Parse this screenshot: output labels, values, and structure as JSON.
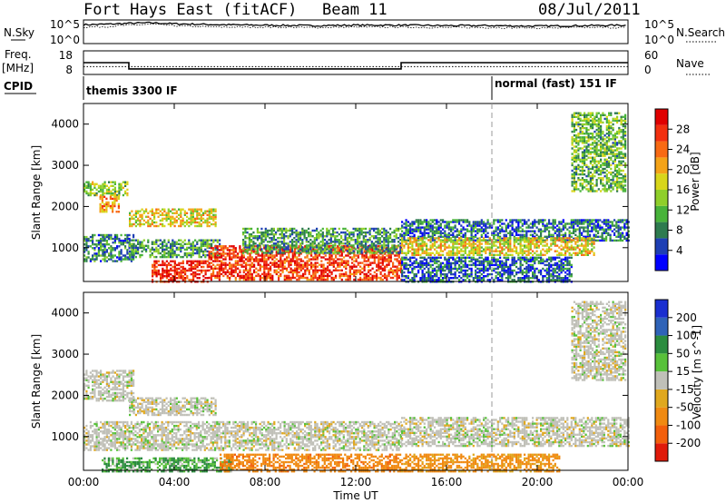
{
  "header": {
    "station": "Fort Hays East (fitACF)",
    "beam": "Beam 11",
    "date": "08/Jul/2011"
  },
  "top_panels": {
    "nsky_label": "N.Sky",
    "nsky_ticks": [
      "10^5",
      "10^0"
    ],
    "nsearch_label": "N.Search",
    "nsearch_ticks": [
      "10^5",
      "10^0"
    ],
    "freq_label": "Freq.",
    "freq_unit": "[MHz]",
    "freq_ticks": [
      "18",
      "8"
    ],
    "nave_label": "Nave",
    "nave_ticks": [
      "60",
      "0"
    ],
    "cpid_label": "CPID",
    "cpid_segments": [
      {
        "label": "themis 3300 IF",
        "start_hour": 0,
        "end_hour": 18
      },
      {
        "label": "normal (fast) 151 IF",
        "start_hour": 18,
        "end_hour": 24
      }
    ]
  },
  "panels": {
    "ylabel": "Slant Range [km]",
    "yticks": [
      "4000",
      "3000",
      "2000",
      "1000"
    ],
    "xticks": [
      "00:00",
      "04:00",
      "08:00",
      "12:00",
      "16:00",
      "20:00",
      "00:00"
    ],
    "xlabel": "Time UT",
    "power_label": "Power [dB]",
    "power_ticks": [
      "28",
      "24",
      "20",
      "16",
      "12",
      "8",
      "4"
    ],
    "velocity_label": "Velocity [m s^-1]",
    "velocity_ticks": [
      "200",
      "100",
      "50",
      "15",
      "-15",
      "-50",
      "-100",
      "-200"
    ]
  },
  "colors": {
    "power": [
      "#0000ff",
      "#1e3fb4",
      "#2e7b4f",
      "#48b33a",
      "#8fcf2a",
      "#d8d61a",
      "#f4a318",
      "#f86a14",
      "#f2300f",
      "#e00000"
    ],
    "velocity": [
      "#1a2fd0",
      "#2f63b8",
      "#2b8c3f",
      "#58c13a",
      "#b9b9b9",
      "#e0a81e",
      "#f08a12",
      "#f25f0c",
      "#e01a0a"
    ],
    "ground_scatter": "#c0c0b8"
  },
  "chart_data": [
    {
      "type": "line",
      "title": "Fort Hays East (fitACF)",
      "panel": "N.Sky / N.Search",
      "x_unit": "hours UT",
      "ylim": [
        0,
        5
      ],
      "series": [
        {
          "name": "N.Sky",
          "x": [
            0,
            1,
            2,
            3,
            4,
            5,
            6,
            8,
            10,
            12,
            14,
            16,
            18,
            20,
            22,
            24
          ],
          "values": [
            4.0,
            4.1,
            4.3,
            4.4,
            4.2,
            4.1,
            4.0,
            3.9,
            3.8,
            3.9,
            3.9,
            3.8,
            3.8,
            3.7,
            3.8,
            3.9
          ]
        },
        {
          "name": "N.Search",
          "x": [
            0,
            1,
            2,
            3,
            4,
            5,
            6,
            8,
            10,
            12,
            14,
            16,
            18,
            20,
            22,
            24
          ],
          "values": [
            3.5,
            3.6,
            3.9,
            4.1,
            3.8,
            3.6,
            3.5,
            3.5,
            3.4,
            3.5,
            3.5,
            3.4,
            3.4,
            3.3,
            3.4,
            3.4
          ]
        }
      ]
    },
    {
      "type": "line",
      "panel": "Freq. / Nave",
      "x_unit": "hours UT",
      "series": [
        {
          "name": "Freq.",
          "x": [
            0,
            2,
            2,
            14,
            14,
            24
          ],
          "values": [
            12.5,
            12.5,
            8.5,
            8.5,
            12.5,
            12.5
          ]
        },
        {
          "name": "Nave",
          "x": [
            0,
            24
          ],
          "values": [
            20,
            20
          ]
        }
      ]
    },
    {
      "type": "heatmap",
      "panel": "Power",
      "xlabel": "Time UT",
      "ylabel": "Slant Range [km]",
      "xlim": [
        0,
        24
      ],
      "ylim": [
        180,
        4500
      ],
      "colorbar": {
        "label": "Power [dB]",
        "range": [
          0,
          32
        ]
      },
      "regions": [
        {
          "t0": 0.0,
          "t1": 1.9,
          "r0": 2300,
          "r1": 2650,
          "value": 14
        },
        {
          "t0": 0.7,
          "t1": 1.6,
          "r0": 1900,
          "r1": 2300,
          "value": 22
        },
        {
          "t0": 0.0,
          "t1": 2.2,
          "r0": 700,
          "r1": 1350,
          "value": 8
        },
        {
          "t0": 2.0,
          "t1": 5.8,
          "r0": 1550,
          "r1": 2000,
          "value": 18
        },
        {
          "t0": 2.0,
          "t1": 6.0,
          "r0": 800,
          "r1": 1250,
          "value": 10
        },
        {
          "t0": 3.0,
          "t1": 5.5,
          "r0": 200,
          "r1": 700,
          "value": 29
        },
        {
          "t0": 5.5,
          "t1": 14.0,
          "r0": 250,
          "r1": 1100,
          "value": 27
        },
        {
          "t0": 7.0,
          "t1": 14.0,
          "r0": 900,
          "r1": 1500,
          "value": 10
        },
        {
          "t0": 14.0,
          "t1": 24.0,
          "r0": 1200,
          "r1": 1700,
          "value": 7
        },
        {
          "t0": 14.0,
          "t1": 22.5,
          "r0": 850,
          "r1": 1300,
          "value": 18
        },
        {
          "t0": 14.0,
          "t1": 21.5,
          "r0": 200,
          "r1": 800,
          "value": 6
        },
        {
          "t0": 21.5,
          "t1": 23.9,
          "r0": 2400,
          "r1": 4300,
          "value": 12
        }
      ]
    },
    {
      "type": "heatmap",
      "panel": "Velocity",
      "xlabel": "Time UT",
      "ylabel": "Slant Range [km]",
      "xlim": [
        0,
        24
      ],
      "ylim": [
        180,
        4500
      ],
      "colorbar": {
        "label": "Velocity [m s^-1]",
        "range": [
          -250,
          250
        ]
      },
      "regions": [
        {
          "t0": 0.0,
          "t1": 2.2,
          "r0": 1900,
          "r1": 2650,
          "value": 0
        },
        {
          "t0": 2.0,
          "t1": 5.8,
          "r0": 1550,
          "r1": 2000,
          "value": 0
        },
        {
          "t0": 0.0,
          "t1": 14.0,
          "r0": 700,
          "r1": 1400,
          "value": 0
        },
        {
          "t0": 0.8,
          "t1": 6.5,
          "r0": 180,
          "r1": 500,
          "value": 30
        },
        {
          "t0": 6.0,
          "t1": 14.0,
          "r0": 180,
          "r1": 600,
          "value": -60
        },
        {
          "t0": 14.0,
          "t1": 24.0,
          "r0": 800,
          "r1": 1500,
          "value": 0
        },
        {
          "t0": 14.0,
          "t1": 21.0,
          "r0": 180,
          "r1": 600,
          "value": -40
        },
        {
          "t0": 21.5,
          "t1": 23.9,
          "r0": 2400,
          "r1": 4300,
          "value": 0
        }
      ]
    }
  ]
}
